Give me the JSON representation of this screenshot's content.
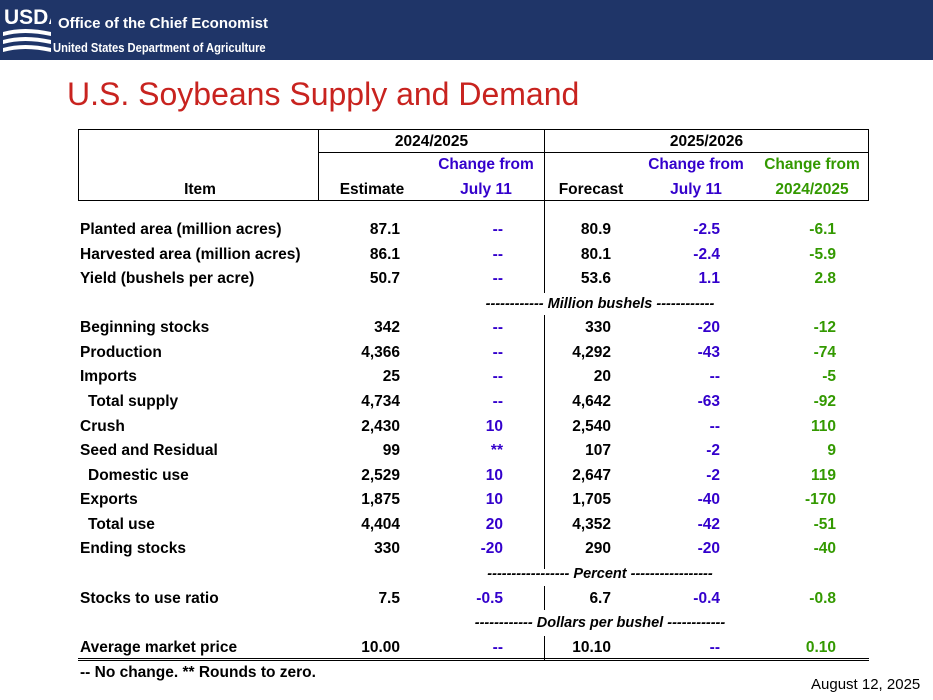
{
  "header": {
    "logo_text": "USDA",
    "org_line1": "Office of the Chief Economist",
    "org_line2": "United States Department of Agriculture",
    "banner_color": "#1f3568"
  },
  "title": "U.S. Soybeans Supply and Demand",
  "colors": {
    "title": "#c8231f",
    "change_july": "#3300cc",
    "change_year": "#339900"
  },
  "table": {
    "group_2024": "2024/2025",
    "group_2025": "2025/2026",
    "col_item": "Item",
    "col_estimate": "Estimate",
    "col_change_july_line1": "Change from",
    "col_change_july_line2": "July 11",
    "col_forecast": "Forecast",
    "col_change_july2_line1": "Change from",
    "col_change_july2_line2": "July 11",
    "col_change_year_line1": "Change from",
    "col_change_year_line2": "2024/2025",
    "units_million_bushels": "------------ Million bushels ------------",
    "units_percent": "----------------- Percent -----------------",
    "units_dollars": "------------ Dollars per bushel ------------",
    "rows": [
      {
        "item": "Planted area (million acres)",
        "estimate": "87.1",
        "chg_july": "--",
        "forecast": "80.9",
        "chg_july_fc": "-2.5",
        "chg_year": "-6.1"
      },
      {
        "item": "Harvested area (million acres)",
        "estimate": "86.1",
        "chg_july": "--",
        "forecast": "80.1",
        "chg_july_fc": "-2.4",
        "chg_year": "-5.9"
      },
      {
        "item": "Yield (bushels per acre)",
        "estimate": "50.7",
        "chg_july": "--",
        "forecast": "53.6",
        "chg_july_fc": "1.1",
        "chg_year": "2.8"
      },
      {
        "item": "Beginning stocks",
        "estimate": "342",
        "chg_july": "--",
        "forecast": "330",
        "chg_july_fc": "-20",
        "chg_year": "-12"
      },
      {
        "item": "Production",
        "estimate": "4,366",
        "chg_july": "--",
        "forecast": "4,292",
        "chg_july_fc": "-43",
        "chg_year": "-74"
      },
      {
        "item": "Imports",
        "estimate": "25",
        "chg_july": "--",
        "forecast": "20",
        "chg_july_fc": "--",
        "chg_year": "-5"
      },
      {
        "item": "Total supply",
        "estimate": "4,734",
        "chg_july": "--",
        "forecast": "4,642",
        "chg_july_fc": "-63",
        "chg_year": "-92"
      },
      {
        "item": "Crush",
        "estimate": "2,430",
        "chg_july": "10",
        "forecast": "2,540",
        "chg_july_fc": "--",
        "chg_year": "110"
      },
      {
        "item": "Seed and Residual",
        "estimate": "99",
        "chg_july": "**",
        "forecast": "107",
        "chg_july_fc": "-2",
        "chg_year": "9"
      },
      {
        "item": "Domestic use",
        "estimate": "2,529",
        "chg_july": "10",
        "forecast": "2,647",
        "chg_july_fc": "-2",
        "chg_year": "119"
      },
      {
        "item": "Exports",
        "estimate": "1,875",
        "chg_july": "10",
        "forecast": "1,705",
        "chg_july_fc": "-40",
        "chg_year": "-170"
      },
      {
        "item": "Total use",
        "estimate": "4,404",
        "chg_july": "20",
        "forecast": "4,352",
        "chg_july_fc": "-42",
        "chg_year": "-51"
      },
      {
        "item": "Ending stocks",
        "estimate": "330",
        "chg_july": "-20",
        "forecast": "290",
        "chg_july_fc": "-20",
        "chg_year": "-40"
      },
      {
        "item": "Stocks to use ratio",
        "estimate": "7.5",
        "chg_july": "-0.5",
        "forecast": "6.7",
        "chg_july_fc": "-0.4",
        "chg_year": "-0.8"
      },
      {
        "item": "Average market price",
        "estimate": "10.00",
        "chg_july": "--",
        "forecast": "10.10",
        "chg_july_fc": "--",
        "chg_year": "0.10"
      }
    ]
  },
  "footnote": "-- No change. ** Rounds to zero.",
  "date": "August 12, 2025"
}
